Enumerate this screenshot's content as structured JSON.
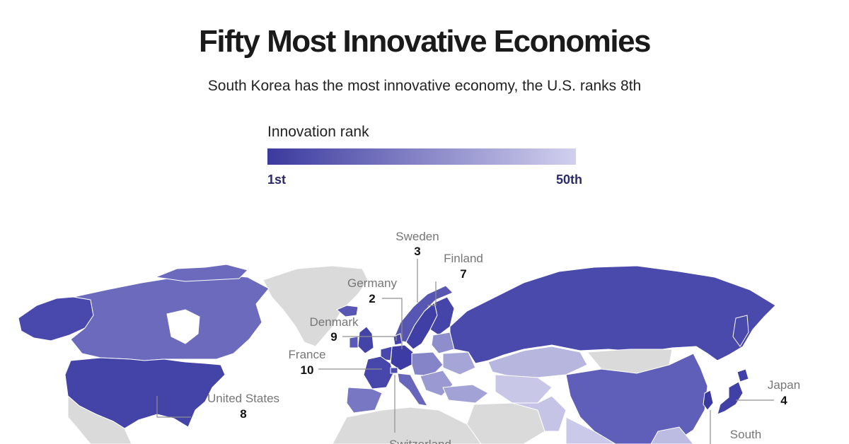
{
  "title": "Fifty Most Innovative Economies",
  "subtitle": "South Korea has the most innovative economy, the U.S. ranks 8th",
  "legend": {
    "title": "Innovation rank",
    "min_label": "1st",
    "max_label": "50th",
    "color_dark": "#3b3a9e",
    "color_light": "#d2d0ee",
    "label_color": "#2a2a6e"
  },
  "colors": {
    "no_data": "#dadada",
    "water": "#ffffff",
    "border": "#ffffff"
  },
  "countries": [
    {
      "name": "Sweden",
      "rank": "3"
    },
    {
      "name": "Finland",
      "rank": "7"
    },
    {
      "name": "Germany",
      "rank": "2"
    },
    {
      "name": "Denmark",
      "rank": "9"
    },
    {
      "name": "France",
      "rank": "10"
    },
    {
      "name": "United States",
      "rank": "8"
    },
    {
      "name": "Japan",
      "rank": "4"
    },
    {
      "name": "South",
      "rank": ""
    },
    {
      "name": "Switzerland",
      "rank": ""
    }
  ]
}
